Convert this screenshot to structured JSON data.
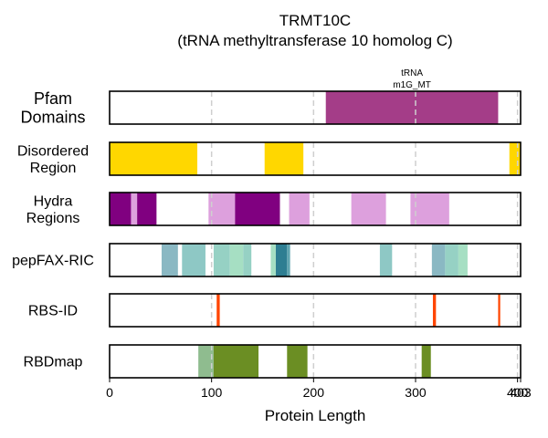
{
  "chart_data": {
    "type": "bar",
    "title_line1": "TRMT10C",
    "title_line2": "(tRNA methyltransferase 10 homolog C)",
    "xlabel": "Protein Length",
    "xlim": [
      0,
      403
    ],
    "xticks": [
      "0",
      "100",
      "200",
      "300",
      "400",
      "403"
    ],
    "xtick_values": [
      0,
      100,
      200,
      300,
      400,
      403
    ],
    "gridlines": [
      100,
      200,
      300,
      400
    ],
    "tracks": [
      {
        "label_lines": [
          "Pfam",
          "Domains"
        ],
        "segments": [
          {
            "start": 212,
            "end": 381,
            "color": "#a43d88",
            "label_lines": [
              "tRNA",
              "m1G_MT"
            ]
          }
        ]
      },
      {
        "label_lines": [
          "Disordered",
          "Region"
        ],
        "segments": [
          {
            "start": 0,
            "end": 86,
            "color": "#ffd700"
          },
          {
            "start": 152,
            "end": 190,
            "color": "#ffd700"
          },
          {
            "start": 392,
            "end": 403,
            "color": "#ffd700"
          }
        ]
      },
      {
        "label_lines": [
          "Hydra",
          "Regions"
        ],
        "segments": [
          {
            "start": 0,
            "end": 21,
            "color": "#800080"
          },
          {
            "start": 21,
            "end": 27,
            "color": "#dda0dd"
          },
          {
            "start": 27,
            "end": 46,
            "color": "#800080"
          },
          {
            "start": 97,
            "end": 123,
            "color": "#dda0dd"
          },
          {
            "start": 123,
            "end": 167,
            "color": "#800080"
          },
          {
            "start": 176,
            "end": 196,
            "color": "#dda0dd"
          },
          {
            "start": 237,
            "end": 271,
            "color": "#dda0dd"
          },
          {
            "start": 295,
            "end": 333,
            "color": "#dda0dd"
          }
        ]
      },
      {
        "label_lines": [
          "pepFAX-RIC"
        ],
        "segments": [
          {
            "start": 51,
            "end": 67,
            "color": "#8ab8c3"
          },
          {
            "start": 71,
            "end": 94,
            "color": "#8ec8c5"
          },
          {
            "start": 102,
            "end": 118,
            "color": "#96d1c4"
          },
          {
            "start": 118,
            "end": 131,
            "color": "#a6dfc3"
          },
          {
            "start": 131,
            "end": 139,
            "color": "#96d1c4"
          },
          {
            "start": 158,
            "end": 163,
            "color": "#a6dfc3"
          },
          {
            "start": 163,
            "end": 174,
            "color": "#2e7e92"
          },
          {
            "start": 174,
            "end": 177,
            "color": "#5fa5b0"
          },
          {
            "start": 265,
            "end": 277,
            "color": "#8ec8c5"
          },
          {
            "start": 316,
            "end": 329,
            "color": "#8ab8c3"
          },
          {
            "start": 329,
            "end": 342,
            "color": "#96d1c4"
          },
          {
            "start": 342,
            "end": 351,
            "color": "#a6dfc3"
          }
        ]
      },
      {
        "label_lines": [
          "RBS-ID"
        ],
        "segments": [
          {
            "start": 105,
            "end": 108,
            "color": "#ff4500"
          },
          {
            "start": 317,
            "end": 320,
            "color": "#ff4500"
          },
          {
            "start": 381,
            "end": 383,
            "color": "#ff4500"
          }
        ]
      },
      {
        "label_lines": [
          "RBDmap"
        ],
        "segments": [
          {
            "start": 87,
            "end": 102,
            "color": "#8fbc8f"
          },
          {
            "start": 102,
            "end": 146,
            "color": "#6b8e23"
          },
          {
            "start": 174,
            "end": 194,
            "color": "#6b8e23"
          },
          {
            "start": 306,
            "end": 315,
            "color": "#6b8e23"
          }
        ]
      }
    ]
  }
}
